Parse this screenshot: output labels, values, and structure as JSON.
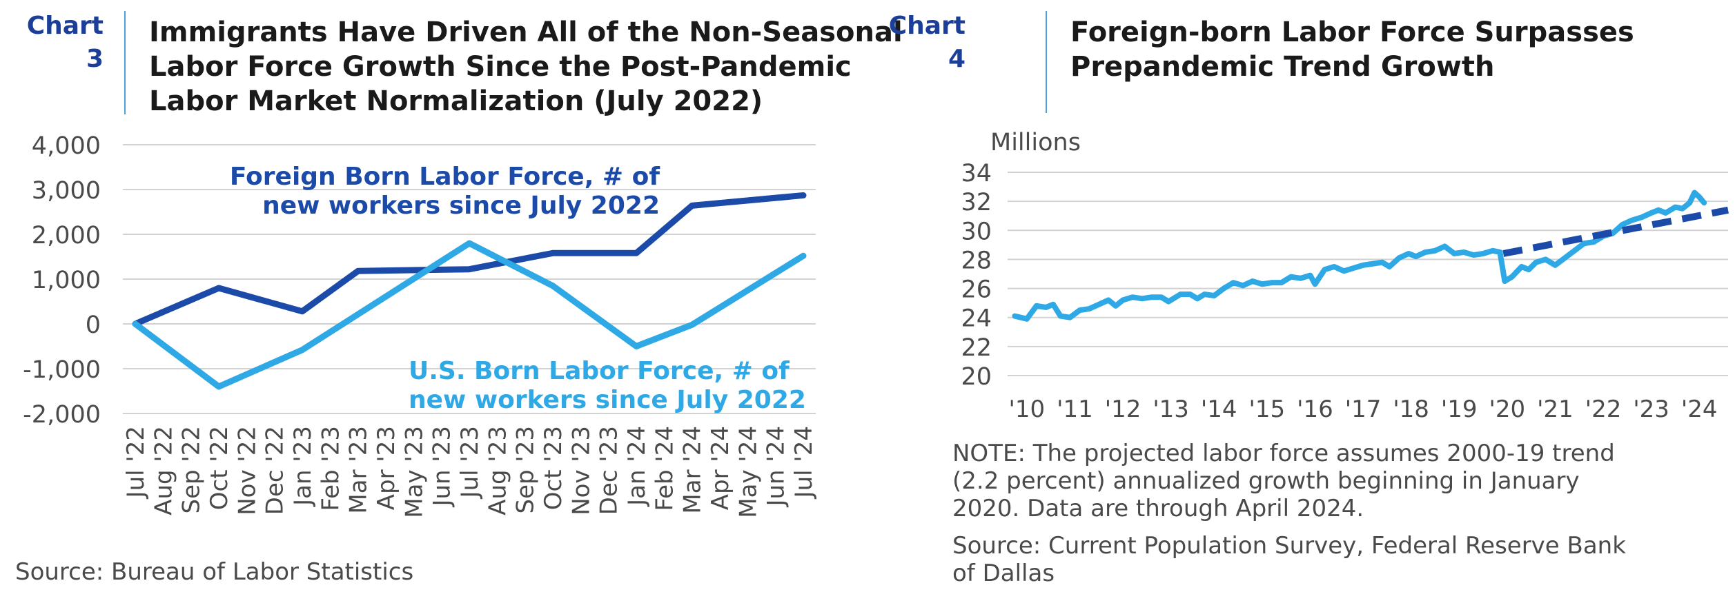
{
  "colors": {
    "dark_blue": "#1b4aa8",
    "light_blue": "#2fa9e6",
    "tag_blue": "#1b3f99",
    "rule_blue": "#4aa3df",
    "grid": "#d2d2d2"
  },
  "left": {
    "tag_word": "Chart",
    "tag_number": "3",
    "title_lines": [
      "Immigrants Have Driven All of the Non-Seasonal",
      "Labor Force Growth Since the Post-Pandemic",
      "Labor Market Normalization (July 2022)"
    ],
    "source": "Source: Bureau of Labor Statistics"
  },
  "right": {
    "tag_word": "Chart",
    "tag_number": "4",
    "title_lines": [
      "Foreign-born Labor Force Surpasses",
      "Prepandemic Trend Growth"
    ],
    "note_lines": [
      "NOTE: The projected labor force assumes 2000-19 trend",
      "(2.2 percent) annualized growth beginning in January",
      "2020. Data are through April 2024."
    ],
    "source_lines": [
      "Source: Current Population Survey, Federal Reserve Bank",
      "of Dallas"
    ]
  },
  "chart_data": [
    {
      "type": "line",
      "ylim": [
        -2000,
        4000
      ],
      "yticks": [
        4000,
        3000,
        2000,
        1000,
        0,
        -1000,
        -2000
      ],
      "ytick_labels": [
        "4,000",
        "3,000",
        "2,000",
        "1,000",
        "0",
        "-1,000",
        "-2,000"
      ],
      "categories": [
        "Jul '22",
        "Aug '22",
        "Sep '22",
        "Oct '22",
        "Nov '22",
        "Dec '22",
        "Jan '23",
        "Feb '23",
        "Mar '23",
        "Apr '23",
        "May '23",
        "Jun '23",
        "Jul '23",
        "Aug '23",
        "Sep '23",
        "Oct '23",
        "Nov '23",
        "Dec '23",
        "Jan '24",
        "Feb '24",
        "Mar '24",
        "Apr '24",
        "May '24",
        "Jun '24",
        "Jul '24"
      ],
      "grid": true,
      "legend": "inline labels",
      "series": [
        {
          "name": "Foreign Born Labor Force, # of new workers since July 2022",
          "label_lines": [
            "Foreign Born Labor Force, # of",
            "new workers since July 2022"
          ],
          "color": "#1b4aa8",
          "points": [
            [
              0,
              0
            ],
            [
              3,
              800
            ],
            [
              6,
              280
            ],
            [
              8,
              1180
            ],
            [
              12,
              1220
            ],
            [
              15,
              1580
            ],
            [
              18,
              1580
            ],
            [
              20,
              2640
            ],
            [
              24,
              2870
            ]
          ]
        },
        {
          "name": "U.S. Born Labor Force, # of new workers since July 2022",
          "label_lines": [
            "U.S. Born Labor Force, # of",
            "new workers since July 2022"
          ],
          "color": "#2fa9e6",
          "points": [
            [
              0,
              0
            ],
            [
              3,
              -1400
            ],
            [
              6,
              -580
            ],
            [
              12,
              1800
            ],
            [
              15,
              850
            ],
            [
              18,
              -500
            ],
            [
              20,
              -20
            ],
            [
              24,
              1520
            ]
          ]
        }
      ]
    },
    {
      "type": "line",
      "ylabel": "Millions",
      "ylim": [
        20,
        34
      ],
      "yticks": [
        34,
        32,
        30,
        28,
        26,
        24,
        22,
        20
      ],
      "ytick_labels": [
        "34",
        "32",
        "30",
        "28",
        "26",
        "24",
        "22",
        "20"
      ],
      "xlim": [
        2009.6,
        2024.6
      ],
      "xticks": [
        2010,
        2011,
        2012,
        2013,
        2014,
        2015,
        2016,
        2017,
        2018,
        2019,
        2020,
        2021,
        2022,
        2023,
        2024
      ],
      "xtick_labels": [
        "'10",
        "'11",
        "'12",
        "'13",
        "'14",
        "'15",
        "'16",
        "'17",
        "'18",
        "'19",
        "'20",
        "'21",
        "'22",
        "'23",
        "'24"
      ],
      "grid": true,
      "series": [
        {
          "kind": "actual",
          "color": "#2fa9e6",
          "points": [
            [
              2009.75,
              24.1
            ],
            [
              2010.0,
              23.9
            ],
            [
              2010.2,
              24.8
            ],
            [
              2010.4,
              24.7
            ],
            [
              2010.55,
              24.9
            ],
            [
              2010.7,
              24.1
            ],
            [
              2010.9,
              24.0
            ],
            [
              2011.1,
              24.5
            ],
            [
              2011.3,
              24.6
            ],
            [
              2011.5,
              24.9
            ],
            [
              2011.7,
              25.2
            ],
            [
              2011.85,
              24.8
            ],
            [
              2012.0,
              25.2
            ],
            [
              2012.2,
              25.4
            ],
            [
              2012.4,
              25.3
            ],
            [
              2012.6,
              25.4
            ],
            [
              2012.8,
              25.4
            ],
            [
              2012.95,
              25.1
            ],
            [
              2013.2,
              25.6
            ],
            [
              2013.4,
              25.6
            ],
            [
              2013.55,
              25.3
            ],
            [
              2013.7,
              25.6
            ],
            [
              2013.9,
              25.5
            ],
            [
              2014.1,
              26.0
            ],
            [
              2014.3,
              26.4
            ],
            [
              2014.5,
              26.2
            ],
            [
              2014.7,
              26.5
            ],
            [
              2014.9,
              26.3
            ],
            [
              2015.1,
              26.4
            ],
            [
              2015.3,
              26.4
            ],
            [
              2015.5,
              26.8
            ],
            [
              2015.7,
              26.7
            ],
            [
              2015.9,
              26.9
            ],
            [
              2016.0,
              26.3
            ],
            [
              2016.2,
              27.3
            ],
            [
              2016.4,
              27.5
            ],
            [
              2016.6,
              27.2
            ],
            [
              2016.8,
              27.4
            ],
            [
              2017.0,
              27.6
            ],
            [
              2017.2,
              27.7
            ],
            [
              2017.4,
              27.8
            ],
            [
              2017.55,
              27.5
            ],
            [
              2017.75,
              28.1
            ],
            [
              2017.95,
              28.4
            ],
            [
              2018.1,
              28.2
            ],
            [
              2018.3,
              28.5
            ],
            [
              2018.5,
              28.6
            ],
            [
              2018.7,
              28.9
            ],
            [
              2018.9,
              28.4
            ],
            [
              2019.1,
              28.5
            ],
            [
              2019.3,
              28.3
            ],
            [
              2019.5,
              28.4
            ],
            [
              2019.7,
              28.6
            ],
            [
              2019.85,
              28.5
            ],
            [
              2019.95,
              26.5
            ],
            [
              2020.1,
              26.8
            ],
            [
              2020.3,
              27.5
            ],
            [
              2020.45,
              27.3
            ],
            [
              2020.6,
              27.8
            ],
            [
              2020.8,
              28.0
            ],
            [
              2021.0,
              27.6
            ],
            [
              2021.2,
              28.1
            ],
            [
              2021.4,
              28.6
            ],
            [
              2021.6,
              29.1
            ],
            [
              2021.8,
              29.2
            ],
            [
              2022.0,
              29.6
            ],
            [
              2022.2,
              29.8
            ],
            [
              2022.4,
              30.4
            ],
            [
              2022.6,
              30.7
            ],
            [
              2022.8,
              30.9
            ],
            [
              2023.0,
              31.2
            ],
            [
              2023.15,
              31.4
            ],
            [
              2023.3,
              31.2
            ],
            [
              2023.5,
              31.6
            ],
            [
              2023.65,
              31.5
            ],
            [
              2023.8,
              31.9
            ],
            [
              2023.9,
              32.6
            ],
            [
              2024.0,
              32.3
            ],
            [
              2024.1,
              31.9
            ]
          ]
        },
        {
          "kind": "projected",
          "color": "#1b4aa8",
          "dashed": true,
          "points": [
            [
              2019.92,
              28.4
            ],
            [
              2024.6,
              31.4
            ]
          ]
        }
      ]
    }
  ]
}
